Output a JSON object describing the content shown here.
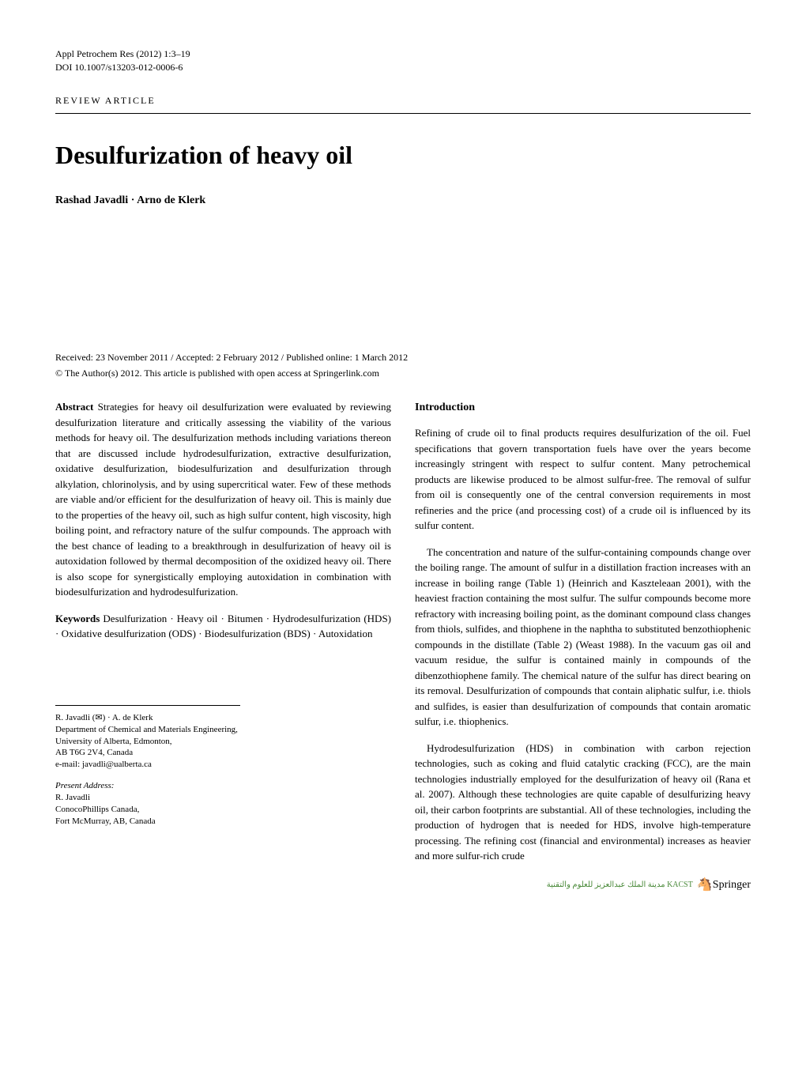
{
  "header": {
    "journal": "Appl Petrochem Res (2012) 1:3–19",
    "doi": "DOI 10.1007/s13203-012-0006-6"
  },
  "article_type": "REVIEW ARTICLE",
  "title": "Desulfurization of heavy oil",
  "authors": "Rashad Javadli · Arno de Klerk",
  "dates": "Received: 23 November 2011 / Accepted: 2 February 2012 / Published online: 1 March 2012",
  "license": "© The Author(s) 2012. This article is published with open access at Springerlink.com",
  "abstract": {
    "label": "Abstract",
    "text": "Strategies for heavy oil desulfurization were evaluated by reviewing desulfurization literature and critically assessing the viability of the various methods for heavy oil. The desulfurization methods including variations thereon that are discussed include hydrodesulfurization, extractive desulfurization, oxidative desulfurization, biodesulfurization and desulfurization through alkylation, chlorinolysis, and by using supercritical water. Few of these methods are viable and/or efficient for the desulfurization of heavy oil. This is mainly due to the properties of the heavy oil, such as high sulfur content, high viscosity, high boiling point, and refractory nature of the sulfur compounds. The approach with the best chance of leading to a breakthrough in desulfurization of heavy oil is autoxidation followed by thermal decomposition of the oxidized heavy oil. There is also scope for synergistically employing autoxidation in combination with biodesulfurization and hydrodesulfurization."
  },
  "keywords": {
    "label": "Keywords",
    "text": "Desulfurization · Heavy oil · Bitumen · Hydrodesulfurization (HDS) · Oxidative desulfurization (ODS) · Biodesulfurization (BDS) · Autoxidation"
  },
  "introduction": {
    "heading": "Introduction",
    "para1": "Refining of crude oil to final products requires desulfurization of the oil. Fuel specifications that govern transportation fuels have over the years become increasingly stringent with respect to sulfur content. Many petrochemical products are likewise produced to be almost sulfur-free. The removal of sulfur from oil is consequently one of the central conversion requirements in most refineries and the price (and processing cost) of a crude oil is influenced by its sulfur content.",
    "para2": "The concentration and nature of the sulfur-containing compounds change over the boiling range. The amount of sulfur in a distillation fraction increases with an increase in boiling range (Table 1) (Heinrich and Kaszteleaan 2001), with the heaviest fraction containing the most sulfur. The sulfur compounds become more refractory with increasing boiling point, as the dominant compound class changes from thiols, sulfides, and thiophene in the naphtha to substituted benzothiophenic compounds in the distillate (Table 2) (Weast 1988). In the vacuum gas oil and vacuum residue, the sulfur is contained mainly in compounds of the dibenzothiophene family. The chemical nature of the sulfur has direct bearing on its removal. Desulfurization of compounds that contain aliphatic sulfur, i.e. thiols and sulfides, is easier than desulfurization of compounds that contain aromatic sulfur, i.e. thiophenics.",
    "para3": "Hydrodesulfurization (HDS) in combination with carbon rejection technologies, such as coking and fluid catalytic cracking (FCC), are the main technologies industrially employed for the desulfurization of heavy oil (Rana et al. 2007). Although these technologies are quite capable of desulfurizing heavy oil, their carbon footprints are substantial. All of these technologies, including the production of hydrogen that is needed for HDS, involve high-temperature processing. The refining cost (financial and environmental) increases as heavier and more sulfur-rich crude"
  },
  "affiliation": {
    "line1": "R. Javadli (✉) · A. de Klerk",
    "line2": "Department of Chemical and Materials Engineering,",
    "line3": "University of Alberta, Edmonton,",
    "line4": "AB T6G 2V4, Canada",
    "line5": "e-mail: javadli@ualberta.ca",
    "present_label": "Present Address:",
    "present1": "R. Javadli",
    "present2": "ConocoPhillips Canada,",
    "present3": "Fort McMurray, AB, Canada"
  },
  "footer": {
    "arabic": "مدينة الملك عبدالعزيز للعلوم والتقنية KACST",
    "springer": "Springer"
  }
}
